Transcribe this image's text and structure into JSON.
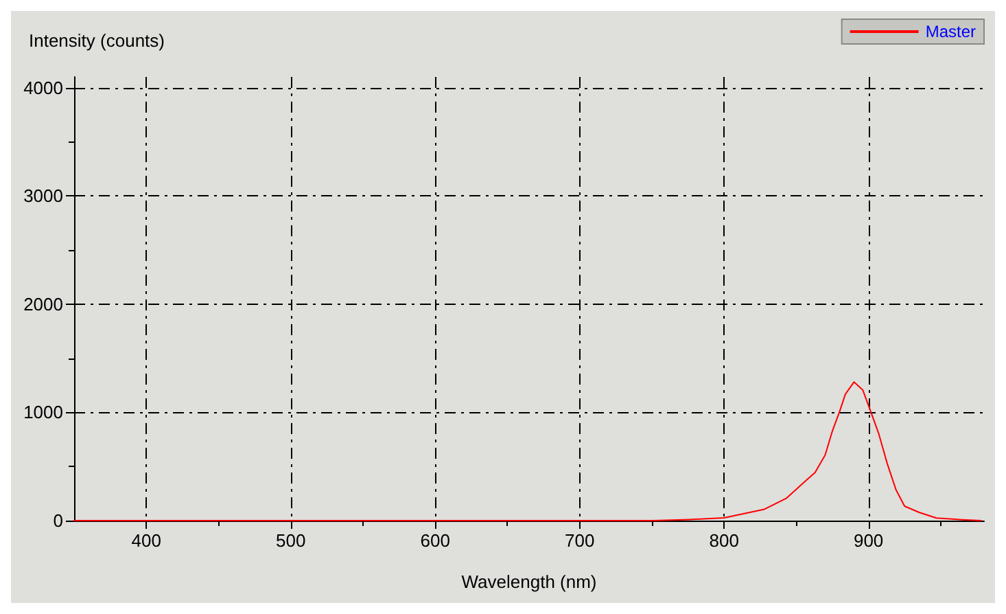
{
  "chart_data": {
    "type": "line",
    "xlabel": "Wavelength (nm)",
    "ylabel": "Intensity (counts)",
    "xlim": [
      350,
      980
    ],
    "ylim": [
      0,
      4100
    ],
    "xticks": [
      400,
      500,
      600,
      700,
      800,
      900
    ],
    "yticks": [
      0,
      1000,
      2000,
      3000,
      4000
    ],
    "grid": true,
    "legend": "top right",
    "marker": "none",
    "line_style": "solid",
    "series": [
      {
        "name": "Master",
        "color": "#ff0000",
        "x": [
          350,
          450,
          550,
          650,
          700,
          751,
          776,
          800,
          828,
          843,
          858,
          863,
          870,
          875,
          880,
          884,
          890,
          896,
          901,
          907,
          913,
          919,
          925,
          935,
          947,
          965,
          978
        ],
        "values": [
          0,
          0,
          0,
          0,
          0,
          0,
          10,
          25,
          105,
          205,
          385,
          445,
          606,
          828,
          1008,
          1169,
          1281,
          1208,
          1028,
          807,
          526,
          286,
          133,
          76,
          24,
          8,
          0
        ]
      }
    ]
  }
}
